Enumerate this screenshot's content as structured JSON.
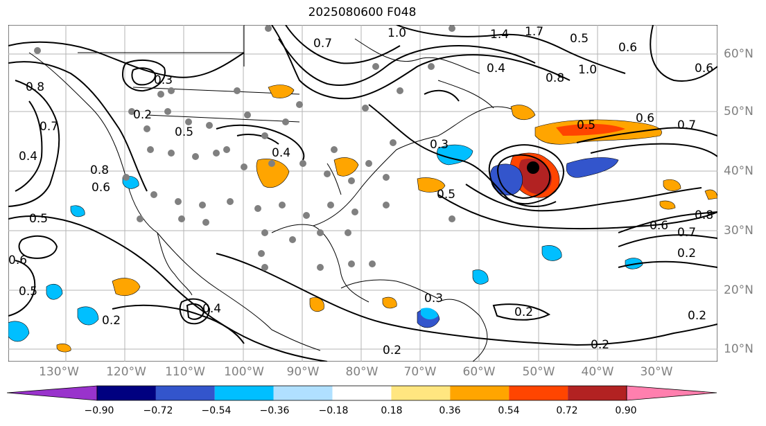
{
  "title": "2025080600 F048",
  "lon_labels": [
    "130°W",
    "120°W",
    "110°W",
    "100°W",
    "90°W",
    "80°W",
    "70°W",
    "60°W",
    "50°W",
    "40°W",
    "30°W"
  ],
  "lat_labels": [
    "60°N",
    "50°N",
    "40°N",
    "30°N",
    "20°N",
    "10°N"
  ],
  "colorbar": {
    "ticks": [
      "−0.90",
      "−0.72",
      "−0.54",
      "−0.36",
      "−0.18",
      "0.18",
      "0.36",
      "0.54",
      "0.72",
      "0.90"
    ],
    "colors": [
      "#9933cc",
      "#000080",
      "#3355cc",
      "#00bfff",
      "#b0e0ff",
      "#ffffff",
      "#ffe680",
      "#ffa500",
      "#ff4500",
      "#b22222",
      "#ff7fae"
    ]
  },
  "contour_labels": [
    "1.0",
    "1.4",
    "1.7",
    "0.5",
    "0.6",
    "0.8",
    "1.0",
    "0.6",
    "0.4",
    "0.8",
    "0.3",
    "0.2",
    "0.7",
    "0.4",
    "0.8",
    "0.5",
    "0.6",
    "0.4",
    "0.5",
    "0.3",
    "0.5",
    "0.5",
    "0.6",
    "0.7",
    "0.6",
    "0.7",
    "0.8",
    "0.2",
    "0.2",
    "0.2",
    "0.2",
    "0.3",
    "0.2",
    "0.5",
    "0.4",
    "0.6",
    "0.2",
    "0.7"
  ],
  "colors": {
    "lat_lon_label": "#808080",
    "grid": "#b3b3b3",
    "contour": "#000000",
    "station_dot": "#808080",
    "orange": "#ffa500",
    "red": "#ff4500",
    "darkred": "#b22222",
    "lightblue": "#00bfff",
    "blue": "#3355cc"
  }
}
